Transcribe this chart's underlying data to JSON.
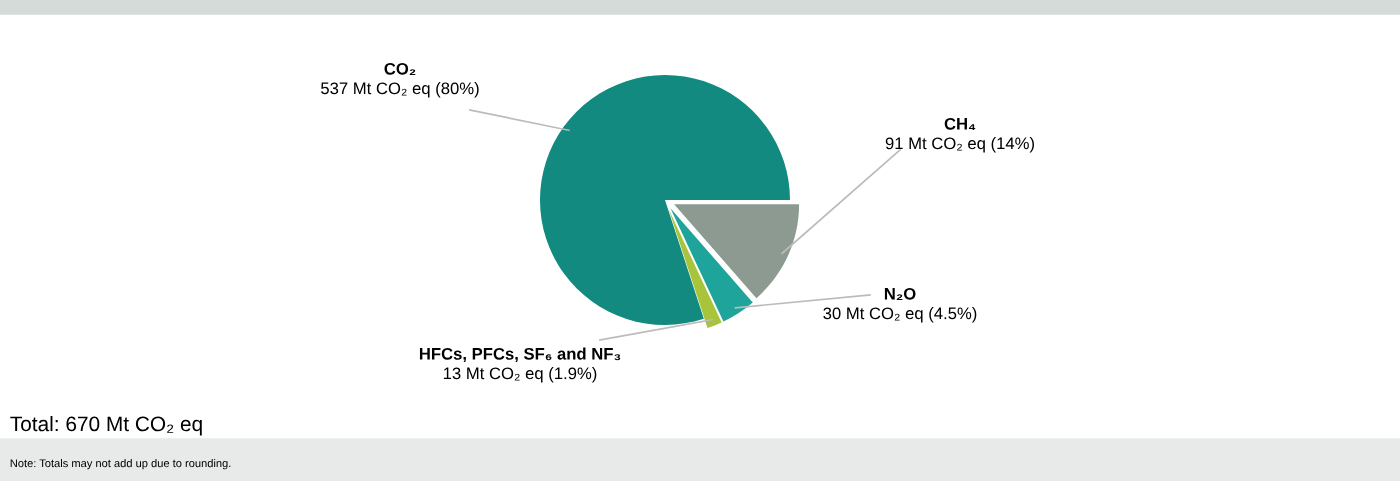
{
  "chart_data": {
    "type": "pie",
    "categories": [
      "CO₂",
      "CH₄",
      "N₂O",
      "HFCs, PFCs, SF₆ and NF₃"
    ],
    "values": [
      537,
      91,
      30,
      13
    ],
    "colors": [
      "#138a80",
      "#8c9a92",
      "#1fa49c",
      "#a8c43a"
    ],
    "value_labels": [
      "537 Mt CO₂ eq (80%)",
      "91 Mt CO₂ eq (14%)",
      "30 Mt CO₂ eq (4.5%)",
      "13 Mt CO₂ eq (1.9%)"
    ],
    "annotations": [
      "Total: 670 Mt CO₂ eq",
      "Note: Totals may not add up due to rounding."
    ],
    "legend": false
  }
}
